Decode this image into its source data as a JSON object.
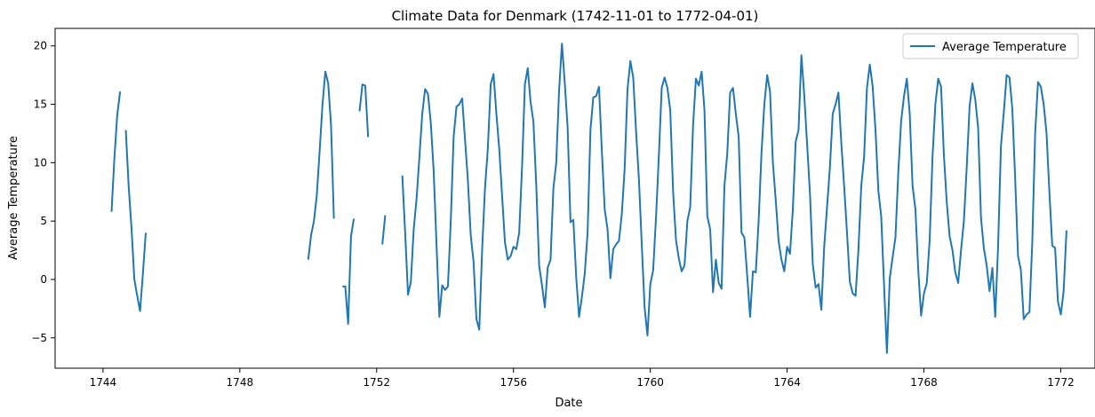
{
  "chart_data": {
    "type": "line",
    "title": "Climate Data for Denmark (1742-11-01 to 1772-04-01)",
    "xlabel": "Date",
    "ylabel": "Average Temperature",
    "xlim": [
      1742.6,
      1773.0
    ],
    "ylim": [
      -7.6,
      21.5
    ],
    "x_ticks": [
      1744,
      1748,
      1752,
      1756,
      1760,
      1764,
      1768,
      1772
    ],
    "y_ticks": [
      -5,
      0,
      5,
      10,
      15,
      20
    ],
    "grid": false,
    "legend_position": "top-right",
    "series": [
      {
        "name": "Average Temperature",
        "color": "#1f77b4",
        "segments": [
          {
            "start": "1744-04",
            "values": [
              5.8,
              10.4,
              14.1,
              16.1
            ]
          },
          {
            "start": "1744-09",
            "values": [
              12.8,
              8.0,
              4.4,
              0.0,
              -1.4,
              -2.7,
              0.5,
              4.0
            ]
          },
          {
            "start": "1750-01",
            "values": [
              1.7,
              3.8,
              5.0,
              7.2,
              11.0,
              15.0,
              17.8,
              16.8,
              13.2,
              5.2
            ]
          },
          {
            "start": "1751-01",
            "values": [
              -0.6,
              -0.6,
              -3.8,
              3.7,
              5.2
            ]
          },
          {
            "start": "1751-07",
            "values": [
              14.4,
              16.7,
              16.6,
              12.2
            ]
          },
          {
            "start": "1752-03",
            "values": [
              3.0,
              5.5
            ]
          },
          {
            "start": "1752-10",
            "values": [
              8.9,
              4.0,
              -1.3,
              -0.2,
              4.3,
              6.9,
              10.5,
              14.2,
              16.3,
              15.9,
              13.4,
              9.3,
              3.0,
              -3.2,
              -0.5,
              -0.9,
              -0.6,
              5.0,
              12.2,
              14.8,
              15.0,
              15.5,
              12.0,
              8.5,
              3.8,
              1.5,
              -3.4,
              -4.3,
              2.5,
              7.8,
              11.2,
              16.7,
              17.6,
              14.2,
              11.2,
              7.2,
              3.2,
              1.7,
              2.0,
              2.8,
              2.6,
              4.0,
              9.6,
              16.7,
              18.1,
              15.2,
              13.5,
              8.0,
              1.2,
              -0.5,
              -2.4,
              1.0,
              1.7,
              7.8,
              10.0,
              16.2,
              20.2,
              16.8,
              13.0,
              4.9,
              5.1,
              0.2,
              -3.2,
              -1.5,
              0.5,
              4.0,
              12.8,
              15.6,
              15.7,
              16.5,
              11.0,
              6.0,
              4.3,
              0.1,
              2.6,
              3.0,
              3.3,
              5.6,
              9.5,
              16.3,
              18.7,
              17.3,
              12.7,
              8.6,
              3.0,
              -2.4,
              -4.8,
              -0.4,
              0.8,
              5.3,
              10.6,
              16.4,
              17.3,
              16.4,
              14.5,
              7.5,
              3.4,
              1.8,
              0.7,
              1.2,
              5.0,
              6.2,
              13.2,
              17.2,
              16.6,
              17.8,
              14.5,
              5.4,
              4.3,
              -1.1,
              1.7,
              -0.3,
              -0.8,
              8.0,
              10.8,
              16.0,
              16.4,
              14.2,
              12.2,
              4.0,
              3.6,
              0.3,
              -3.2,
              0.7,
              0.6,
              5.0,
              10.8,
              15.0,
              17.5,
              16.1,
              10.0,
              6.8,
              3.3,
              1.7,
              0.7,
              2.8,
              2.2,
              6.0,
              11.8,
              12.8,
              19.2,
              15.8,
              11.6,
              7.4,
              1.3,
              -0.7,
              -0.4,
              -2.6,
              2.8,
              6.2,
              9.6,
              14.2,
              15.0,
              16.0,
              11.7,
              8.0,
              4.0,
              -0.2,
              -1.2,
              -1.4,
              2.5,
              8.0,
              10.5,
              16.4,
              18.4,
              16.5,
              12.8,
              7.6,
              5.4,
              -0.5,
              -6.3,
              0.1,
              1.9,
              3.6,
              9.2,
              13.6,
              15.7,
              17.2,
              14.2,
              8.0,
              6.0,
              0.8,
              -3.1,
              -1.2,
              -0.3,
              3.4,
              10.5,
              15.0,
              17.2,
              16.5,
              10.6,
              6.6,
              3.7,
              2.5,
              0.6,
              -0.3,
              2.5,
              5.0,
              9.6,
              14.8,
              16.8,
              15.4,
              13.0,
              5.3,
              2.7,
              1.2,
              -1.0,
              1.0,
              -3.2,
              2.8,
              11.4,
              14.3,
              17.5,
              17.3,
              14.6,
              8.6,
              2.0,
              0.8,
              -3.4,
              -3.0,
              -2.8,
              3.2,
              12.5,
              16.9,
              16.5,
              15.0,
              12.5,
              7.5,
              2.9,
              2.7,
              -1.9,
              -3.0,
              -1.0,
              4.2
            ]
          }
        ]
      }
    ]
  }
}
